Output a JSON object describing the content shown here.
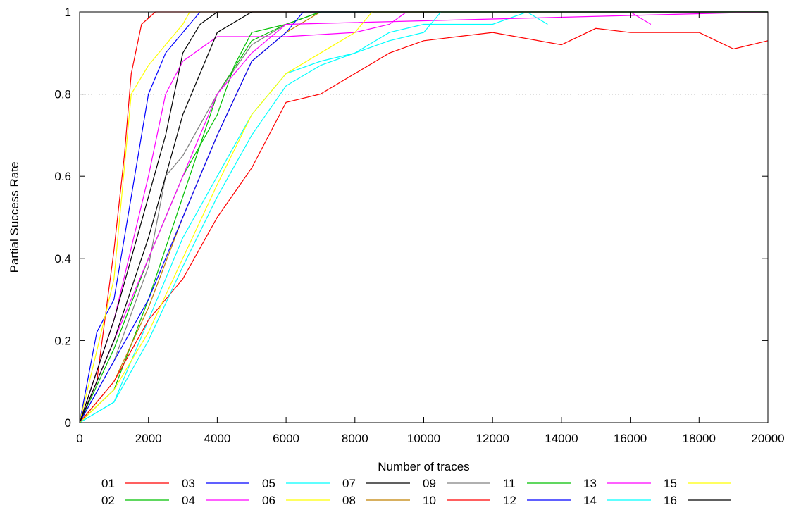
{
  "chart_data": {
    "type": "line",
    "title": "",
    "xlabel": "Number of traces",
    "ylabel": "Partial Success Rate",
    "xlim": [
      0,
      20000
    ],
    "ylim": [
      0,
      1
    ],
    "grid": false,
    "reference_line": {
      "y": 0.8,
      "style": "dotted"
    },
    "legend_position": "bottom",
    "x_ticks": [
      0,
      2000,
      4000,
      6000,
      8000,
      10000,
      12000,
      14000,
      16000,
      18000,
      20000
    ],
    "y_ticks": [
      0,
      0.2,
      0.4,
      0.6,
      0.8,
      1
    ],
    "x_tick_labels": [
      "0",
      "2000",
      "4000",
      "6000",
      "8000",
      "10000",
      "12000",
      "14000",
      "16000",
      "18000",
      "20000"
    ],
    "y_tick_labels": [
      "0",
      "0.2",
      "0.4",
      "0.6",
      "0.8",
      "1"
    ],
    "series": [
      {
        "name": "01",
        "color": "#ff0000",
        "x": [
          0,
          500,
          1000,
          1300,
          1500,
          1800,
          2200,
          2600,
          20000
        ],
        "y": [
          0,
          0.1,
          0.42,
          0.65,
          0.85,
          0.97,
          1,
          1,
          1
        ]
      },
      {
        "name": "02",
        "color": "#00c000",
        "x": [
          0,
          1000,
          2000,
          3000,
          4000,
          5000,
          6000,
          7000,
          20000
        ],
        "y": [
          0,
          0.08,
          0.3,
          0.55,
          0.8,
          0.93,
          0.97,
          1,
          1
        ]
      },
      {
        "name": "03",
        "color": "#0000ff",
        "x": [
          0,
          500,
          1000,
          1500,
          2000,
          2500,
          3000,
          3500,
          20000
        ],
        "y": [
          0,
          0.22,
          0.3,
          0.55,
          0.8,
          0.9,
          0.95,
          1,
          1
        ]
      },
      {
        "name": "04",
        "color": "#ff00ff",
        "x": [
          0,
          1000,
          2000,
          2500,
          3000,
          4000,
          6000,
          8000,
          9000,
          9500,
          14000,
          16000,
          16600
        ],
        "y": [
          0,
          0.25,
          0.6,
          0.8,
          0.88,
          0.94,
          0.94,
          0.95,
          0.97,
          1,
          1,
          1,
          0.97
        ]
      },
      {
        "name": "05",
        "color": "#00ffff",
        "x": [
          0,
          1000,
          2000,
          3000,
          4000,
          5000,
          6000,
          7000,
          8000,
          9000,
          10000,
          12000,
          13000,
          13600
        ],
        "y": [
          0,
          0.05,
          0.25,
          0.45,
          0.6,
          0.75,
          0.85,
          0.88,
          0.9,
          0.95,
          0.97,
          0.97,
          1,
          0.97
        ]
      },
      {
        "name": "06",
        "color": "#ffff00",
        "x": [
          0,
          1000,
          1500,
          2000,
          2500,
          3000,
          3200,
          20000
        ],
        "y": [
          0,
          0.35,
          0.8,
          0.87,
          0.92,
          0.97,
          1,
          1
        ]
      },
      {
        "name": "07",
        "color": "#000000",
        "x": [
          0,
          1000,
          2000,
          2500,
          3000,
          3500,
          4000,
          20000
        ],
        "y": [
          0,
          0.25,
          0.55,
          0.7,
          0.9,
          0.97,
          1,
          1
        ]
      },
      {
        "name": "08",
        "color": "#c08000",
        "x": [
          0,
          1000,
          2000,
          3000,
          4000,
          5000,
          6000,
          7000,
          8000,
          20000
        ],
        "y": [
          0,
          0.1,
          0.28,
          0.5,
          0.7,
          0.88,
          0.95,
          1,
          1,
          1
        ]
      },
      {
        "name": "09",
        "color": "#808080",
        "x": [
          0,
          1000,
          2000,
          2500,
          3000,
          4000,
          5000,
          6000,
          7000,
          20000
        ],
        "y": [
          0,
          0.15,
          0.38,
          0.6,
          0.65,
          0.8,
          0.92,
          0.97,
          1,
          1
        ]
      },
      {
        "name": "10",
        "color": "#ff0000",
        "x": [
          0,
          1000,
          2000,
          3000,
          4000,
          5000,
          6000,
          7000,
          8000,
          9000,
          10000,
          12000,
          14000,
          15000,
          16000,
          18000,
          19000,
          20000
        ],
        "y": [
          0,
          0.1,
          0.25,
          0.35,
          0.5,
          0.62,
          0.78,
          0.8,
          0.85,
          0.9,
          0.93,
          0.95,
          0.92,
          0.96,
          0.95,
          0.95,
          0.91,
          0.93
        ]
      },
      {
        "name": "11",
        "color": "#00c000",
        "x": [
          0,
          1000,
          2000,
          3000,
          4000,
          4500,
          5000,
          6000,
          7000,
          20000
        ],
        "y": [
          0,
          0.18,
          0.4,
          0.6,
          0.75,
          0.87,
          0.95,
          0.97,
          1,
          1
        ]
      },
      {
        "name": "12",
        "color": "#0000ff",
        "x": [
          0,
          1000,
          2000,
          3000,
          4000,
          5000,
          6000,
          6500,
          7000,
          20000
        ],
        "y": [
          0,
          0.15,
          0.3,
          0.5,
          0.7,
          0.88,
          0.95,
          1,
          1,
          1
        ]
      },
      {
        "name": "13",
        "color": "#ff00ff",
        "x": [
          0,
          1000,
          2000,
          3000,
          4000,
          5000,
          6000,
          20000
        ],
        "y": [
          0,
          0.2,
          0.4,
          0.6,
          0.8,
          0.9,
          0.97,
          1
        ]
      },
      {
        "name": "14",
        "color": "#00ffff",
        "x": [
          0,
          1000,
          2000,
          3000,
          4000,
          5000,
          6000,
          7000,
          8000,
          9000,
          10000,
          10500,
          20000
        ],
        "y": [
          0,
          0.05,
          0.2,
          0.38,
          0.55,
          0.7,
          0.82,
          0.87,
          0.9,
          0.93,
          0.95,
          1,
          1
        ]
      },
      {
        "name": "15",
        "color": "#ffff00",
        "x": [
          0,
          1000,
          2000,
          3000,
          4000,
          5000,
          6000,
          7000,
          8000,
          8500,
          20000
        ],
        "y": [
          0,
          0.08,
          0.22,
          0.4,
          0.58,
          0.75,
          0.85,
          0.9,
          0.95,
          1,
          1
        ]
      },
      {
        "name": "16",
        "color": "#000000",
        "x": [
          0,
          1000,
          2000,
          3000,
          4000,
          5000,
          20000
        ],
        "y": [
          0,
          0.2,
          0.45,
          0.75,
          0.95,
          1,
          1
        ]
      }
    ]
  }
}
